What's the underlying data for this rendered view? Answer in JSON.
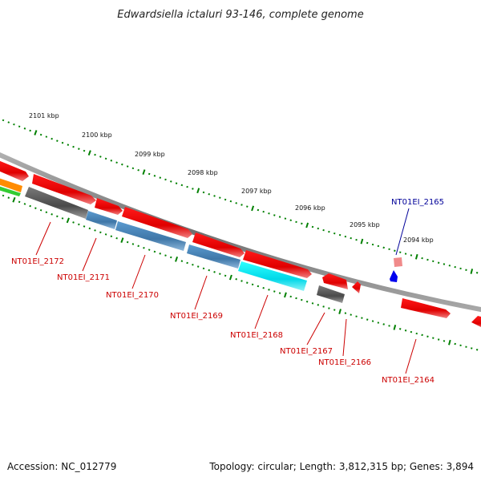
{
  "title": "Edwardsiella ictaluri 93-146, complete genome",
  "footer": {
    "accession": "Accession: NC_012779",
    "summary": "Topology: circular; Length: 3,812,315 bp; Genes: 3,894"
  },
  "scale_labels": [
    "2101 kbp",
    "2100 kbp",
    "2099 kbp",
    "2098 kbp",
    "2097 kbp",
    "2096 kbp",
    "2095 kbp",
    "2094 kbp"
  ],
  "gene_labels": [
    {
      "text": "NT01EI_2172",
      "color": "#cc0000"
    },
    {
      "text": "NT01EI_2171",
      "color": "#cc0000"
    },
    {
      "text": "NT01EI_2170",
      "color": "#cc0000"
    },
    {
      "text": "NT01EI_2169",
      "color": "#cc0000"
    },
    {
      "text": "NT01EI_2168",
      "color": "#cc0000"
    },
    {
      "text": "NT01EI_2167",
      "color": "#cc0000"
    },
    {
      "text": "NT01EI_2166",
      "color": "#cc0000"
    },
    {
      "text": "NT01EI_2165",
      "color": "#000099"
    },
    {
      "text": "NT01EI_2164",
      "color": "#cc0000"
    }
  ],
  "colors": {
    "backbone": "#808080",
    "cds_red": "#ee0000",
    "cds_gray": "#606060",
    "cds_steelblue": "#4682b4",
    "cds_cyan": "#00e5ee",
    "cds_blue": "#0000ff",
    "tick_green": "#008000"
  }
}
